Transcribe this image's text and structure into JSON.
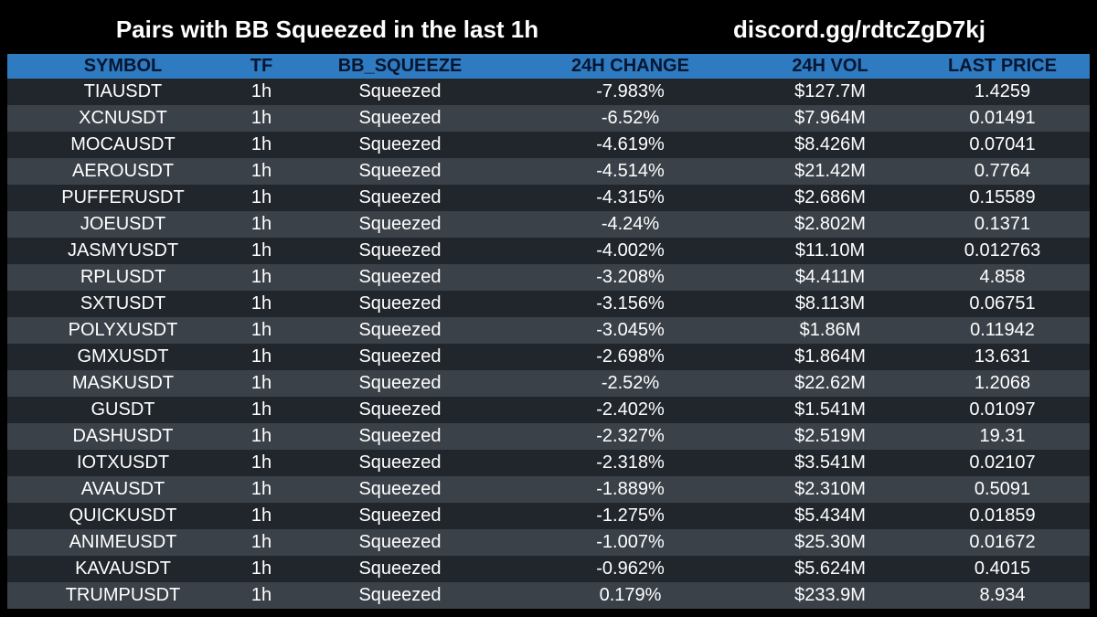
{
  "header": {
    "title": "Pairs with BB Squeezed in the last 1h",
    "discord": "discord.gg/rdtcZgD7kj"
  },
  "colors": {
    "background": "#000000",
    "header_row": "#2f7bc1",
    "row_dark": "#21262c",
    "row_light": "#3b4149"
  },
  "table": {
    "columns": [
      "SYMBOL",
      "TF",
      "BB_SQUEEZE",
      "24H CHANGE",
      "24H VOL",
      "LAST PRICE"
    ],
    "rows": [
      [
        "TIAUSDT",
        "1h",
        "Squeezed",
        "-7.983%",
        "$127.7M",
        "1.4259"
      ],
      [
        "XCNUSDT",
        "1h",
        "Squeezed",
        "-6.52%",
        "$7.964M",
        "0.01491"
      ],
      [
        "MOCAUSDT",
        "1h",
        "Squeezed",
        "-4.619%",
        "$8.426M",
        "0.07041"
      ],
      [
        "AEROUSDT",
        "1h",
        "Squeezed",
        "-4.514%",
        "$21.42M",
        "0.7764"
      ],
      [
        "PUFFERUSDT",
        "1h",
        "Squeezed",
        "-4.315%",
        "$2.686M",
        "0.15589"
      ],
      [
        "JOEUSDT",
        "1h",
        "Squeezed",
        "-4.24%",
        "$2.802M",
        "0.1371"
      ],
      [
        "JASMYUSDT",
        "1h",
        "Squeezed",
        "-4.002%",
        "$11.10M",
        "0.012763"
      ],
      [
        "RPLUSDT",
        "1h",
        "Squeezed",
        "-3.208%",
        "$4.411M",
        "4.858"
      ],
      [
        "SXTUSDT",
        "1h",
        "Squeezed",
        "-3.156%",
        "$8.113M",
        "0.06751"
      ],
      [
        "POLYXUSDT",
        "1h",
        "Squeezed",
        "-3.045%",
        "$1.86M",
        "0.11942"
      ],
      [
        "GMXUSDT",
        "1h",
        "Squeezed",
        "-2.698%",
        "$1.864M",
        "13.631"
      ],
      [
        "MASKUSDT",
        "1h",
        "Squeezed",
        "-2.52%",
        "$22.62M",
        "1.2068"
      ],
      [
        "GUSDT",
        "1h",
        "Squeezed",
        "-2.402%",
        "$1.541M",
        "0.01097"
      ],
      [
        "DASHUSDT",
        "1h",
        "Squeezed",
        "-2.327%",
        "$2.519M",
        "19.31"
      ],
      [
        "IOTXUSDT",
        "1h",
        "Squeezed",
        "-2.318%",
        "$3.541M",
        "0.02107"
      ],
      [
        "AVAUSDT",
        "1h",
        "Squeezed",
        "-1.889%",
        "$2.310M",
        "0.5091"
      ],
      [
        "QUICKUSDT",
        "1h",
        "Squeezed",
        "-1.275%",
        "$5.434M",
        "0.01859"
      ],
      [
        "ANIMEUSDT",
        "1h",
        "Squeezed",
        "-1.007%",
        "$25.30M",
        "0.01672"
      ],
      [
        "KAVAUSDT",
        "1h",
        "Squeezed",
        "-0.962%",
        "$5.624M",
        "0.4015"
      ],
      [
        "TRUMPUSDT",
        "1h",
        "Squeezed",
        "0.179%",
        "$233.9M",
        "8.934"
      ]
    ]
  }
}
